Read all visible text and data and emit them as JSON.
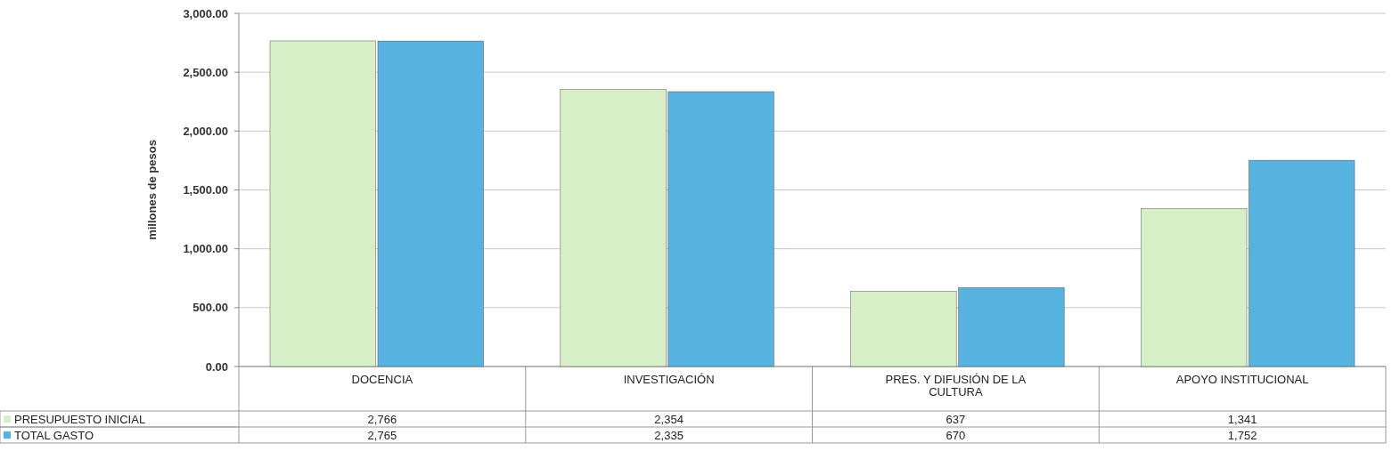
{
  "chart_data": {
    "type": "bar",
    "ylabel": "millones de pesos",
    "categories": [
      "DOCENCIA",
      "INVESTIGACIÓN",
      "PRES. Y DIFUSIÓN DE LA CULTURA",
      "APOYO INSTITUCIONAL"
    ],
    "series": [
      {
        "name": "PRESUPUESTO INICIAL",
        "color": "#d6efc6",
        "values": [
          2766,
          2354,
          637,
          1341
        ],
        "value_labels": [
          "2,766",
          "2,354",
          "637",
          "1,341"
        ]
      },
      {
        "name": "TOTAL GASTO",
        "color": "#56b2df",
        "values": [
          2765,
          2335,
          670,
          1752
        ],
        "value_labels": [
          "2,765",
          "2,335",
          "670",
          "1,752"
        ]
      }
    ],
    "ylim": [
      0,
      3000
    ],
    "yticks": [
      {
        "value": 0,
        "label": "0.00"
      },
      {
        "value": 500,
        "label": "500.00"
      },
      {
        "value": 1000,
        "label": "1,000.00"
      },
      {
        "value": 1500,
        "label": "1,500.00"
      },
      {
        "value": 2000,
        "label": "2,000.00"
      },
      {
        "value": 2500,
        "label": "2,500.00"
      },
      {
        "value": 3000,
        "label": "3,000.00"
      }
    ],
    "grid": true,
    "legend": "bottom left"
  }
}
